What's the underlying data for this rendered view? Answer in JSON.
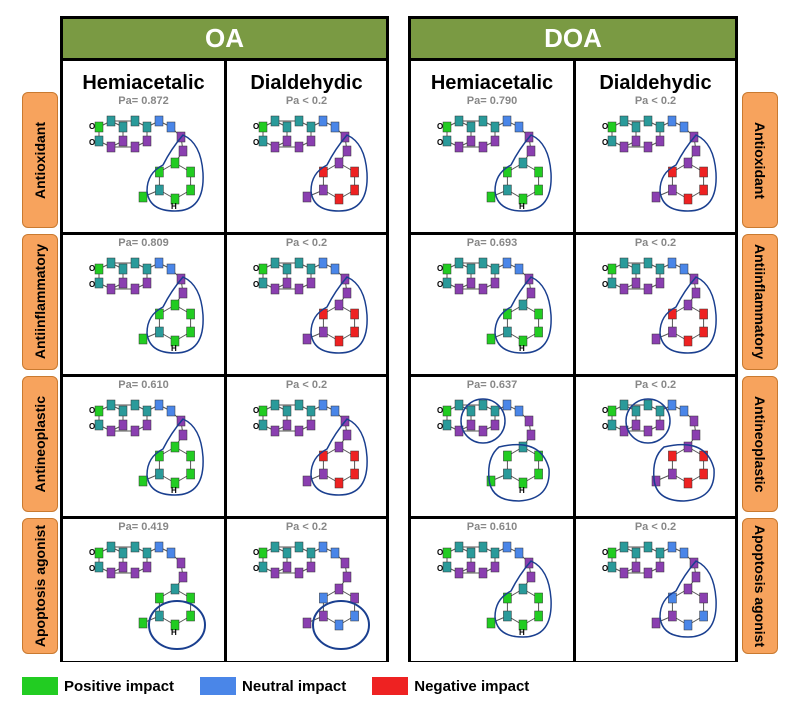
{
  "groups": [
    {
      "title": "OA",
      "columns": [
        "Hemiacetalic",
        "Dialdehydic"
      ]
    },
    {
      "title": "DOA",
      "columns": [
        "Hemiacetalic",
        "Dialdehydic"
      ]
    }
  ],
  "rows": [
    {
      "label": "Antioxidant",
      "pa": [
        "Pa= 0.872",
        "Pa < 0.2",
        "Pa= 0.790",
        "Pa < 0.2"
      ]
    },
    {
      "label": "Antiinflammatory",
      "pa": [
        "Pa= 0.809",
        "Pa < 0.2",
        "Pa= 0.693",
        "Pa < 0.2"
      ]
    },
    {
      "label": "Antineoplastic",
      "pa": [
        "Pa= 0.610",
        "Pa < 0.2",
        "Pa= 0.637",
        "Pa < 0.2"
      ]
    },
    {
      "label": "Apoptosis agonist",
      "pa": [
        "Pa= 0.419",
        "Pa < 0.2",
        "Pa= 0.610",
        "Pa < 0.2"
      ]
    }
  ],
  "atom_labels": {
    "oxygen": "O",
    "hydrogen": "H"
  },
  "legend": [
    {
      "label": "Positive impact",
      "color": "#22cc22"
    },
    {
      "label": "Neutral impact",
      "color": "#4a86e8"
    },
    {
      "label": "Negative impact",
      "color": "#ee2222"
    }
  ],
  "colors": {
    "header": "#7a9a43",
    "row_tab": "#f7a35d",
    "circle": "#1a3f8f",
    "teal": "#2a9a9a",
    "purple": "#8a3fb0"
  }
}
